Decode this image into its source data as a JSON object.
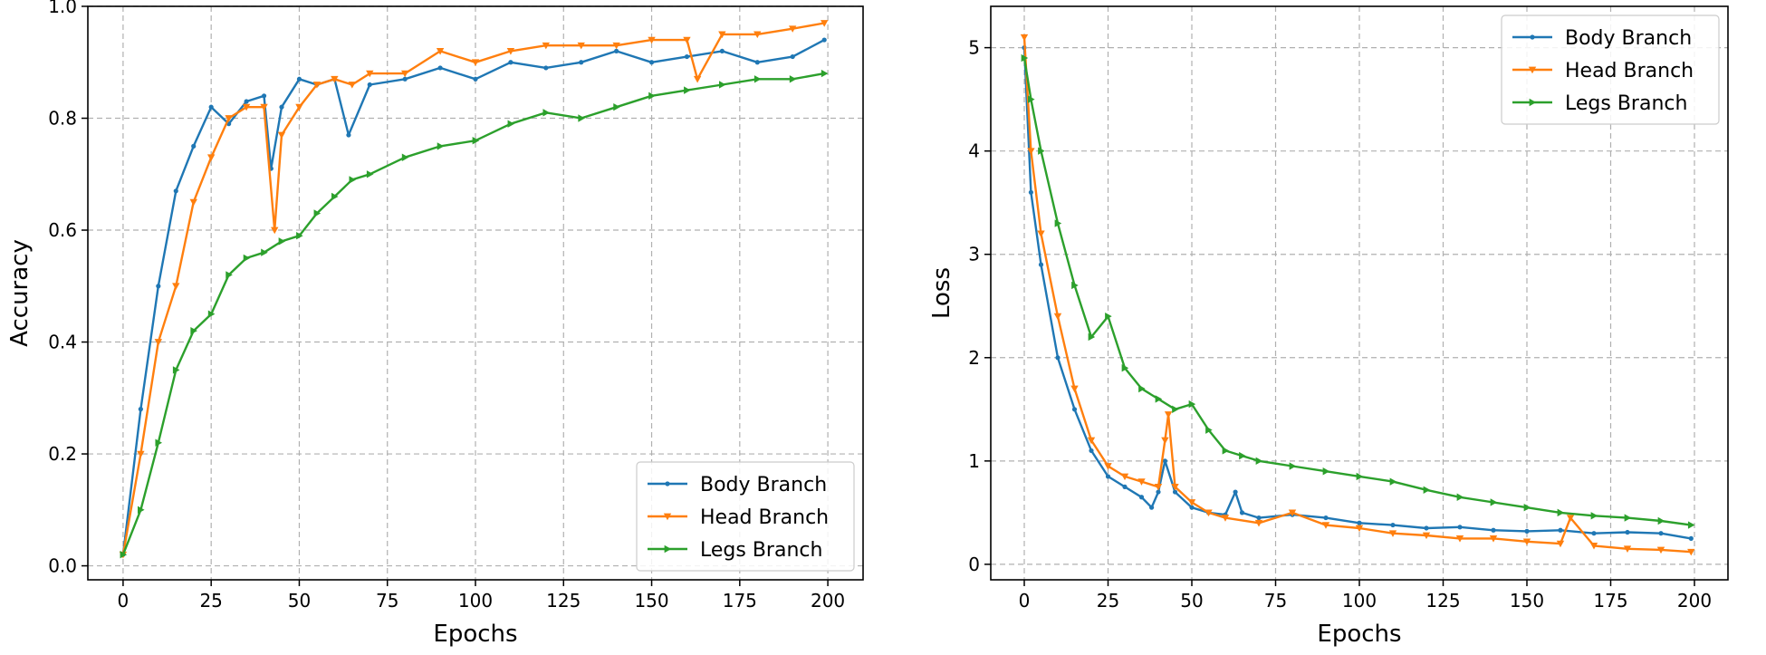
{
  "chart_data": [
    {
      "type": "line",
      "xlabel": "Epochs",
      "ylabel": "Accuracy",
      "xlim": [
        -10,
        210
      ],
      "ylim": [
        -0.025,
        1.0
      ],
      "xticks": [
        0,
        25,
        50,
        75,
        100,
        125,
        150,
        175,
        200
      ],
      "yticks": [
        0.0,
        0.2,
        0.4,
        0.6,
        0.8,
        1.0
      ],
      "ytick_format": 1,
      "grid": true,
      "legend_position": "lower-right",
      "series": [
        {
          "name": "Body Branch",
          "color": "#1f77b4",
          "marker": "dot",
          "x": [
            0,
            5,
            10,
            15,
            20,
            25,
            30,
            35,
            40,
            42,
            45,
            50,
            55,
            60,
            64,
            70,
            80,
            90,
            100,
            110,
            120,
            130,
            140,
            150,
            160,
            170,
            180,
            190,
            199
          ],
          "y": [
            0.02,
            0.28,
            0.5,
            0.67,
            0.75,
            0.82,
            0.79,
            0.83,
            0.84,
            0.71,
            0.82,
            0.87,
            0.86,
            0.87,
            0.77,
            0.86,
            0.87,
            0.89,
            0.87,
            0.9,
            0.89,
            0.9,
            0.92,
            0.9,
            0.91,
            0.92,
            0.9,
            0.91,
            0.94
          ]
        },
        {
          "name": "Head Branch",
          "color": "#ff7f0e",
          "marker": "triangle-down",
          "x": [
            0,
            5,
            10,
            15,
            20,
            25,
            30,
            35,
            40,
            43,
            45,
            50,
            55,
            60,
            65,
            70,
            80,
            90,
            100,
            110,
            120,
            130,
            140,
            150,
            160,
            163,
            170,
            180,
            190,
            199
          ],
          "y": [
            0.02,
            0.2,
            0.4,
            0.5,
            0.65,
            0.73,
            0.8,
            0.82,
            0.82,
            0.6,
            0.77,
            0.82,
            0.86,
            0.87,
            0.86,
            0.88,
            0.88,
            0.92,
            0.9,
            0.92,
            0.93,
            0.93,
            0.93,
            0.94,
            0.94,
            0.87,
            0.95,
            0.95,
            0.96,
            0.97
          ]
        },
        {
          "name": "Legs Branch",
          "color": "#2ca02c",
          "marker": "triangle-right",
          "x": [
            0,
            5,
            10,
            15,
            20,
            25,
            30,
            35,
            40,
            45,
            50,
            55,
            60,
            65,
            70,
            80,
            90,
            100,
            110,
            120,
            130,
            140,
            150,
            160,
            170,
            180,
            190,
            199
          ],
          "y": [
            0.02,
            0.1,
            0.22,
            0.35,
            0.42,
            0.45,
            0.52,
            0.55,
            0.56,
            0.58,
            0.59,
            0.63,
            0.66,
            0.69,
            0.7,
            0.73,
            0.75,
            0.76,
            0.79,
            0.81,
            0.8,
            0.82,
            0.84,
            0.85,
            0.86,
            0.87,
            0.87,
            0.88
          ]
        }
      ]
    },
    {
      "type": "line",
      "xlabel": "Epochs",
      "ylabel": "Loss",
      "xlim": [
        -10,
        210
      ],
      "ylim": [
        -0.15,
        5.4
      ],
      "xticks": [
        0,
        25,
        50,
        75,
        100,
        125,
        150,
        175,
        200
      ],
      "yticks": [
        0,
        1,
        2,
        3,
        4,
        5
      ],
      "ytick_format": 0,
      "grid": true,
      "legend_position": "upper-right",
      "series": [
        {
          "name": "Body Branch",
          "color": "#1f77b4",
          "marker": "dot",
          "x": [
            0,
            2,
            5,
            10,
            15,
            20,
            25,
            30,
            35,
            38,
            40,
            42,
            45,
            50,
            55,
            60,
            63,
            65,
            70,
            80,
            90,
            100,
            110,
            120,
            130,
            140,
            150,
            160,
            170,
            180,
            190,
            199
          ],
          "y": [
            5.0,
            3.6,
            2.9,
            2.0,
            1.5,
            1.1,
            0.85,
            0.75,
            0.65,
            0.55,
            0.7,
            1.0,
            0.7,
            0.55,
            0.5,
            0.48,
            0.7,
            0.5,
            0.45,
            0.48,
            0.45,
            0.4,
            0.38,
            0.35,
            0.36,
            0.33,
            0.32,
            0.33,
            0.3,
            0.31,
            0.3,
            0.25
          ]
        },
        {
          "name": "Head Branch",
          "color": "#ff7f0e",
          "marker": "triangle-down",
          "x": [
            0,
            2,
            5,
            10,
            15,
            20,
            25,
            30,
            35,
            40,
            42,
            43,
            45,
            50,
            55,
            60,
            70,
            80,
            90,
            100,
            110,
            120,
            130,
            140,
            150,
            160,
            163,
            170,
            180,
            190,
            199
          ],
          "y": [
            5.1,
            4.0,
            3.2,
            2.4,
            1.7,
            1.2,
            0.95,
            0.85,
            0.8,
            0.75,
            1.2,
            1.45,
            0.75,
            0.6,
            0.5,
            0.45,
            0.4,
            0.5,
            0.38,
            0.35,
            0.3,
            0.28,
            0.25,
            0.25,
            0.22,
            0.2,
            0.45,
            0.18,
            0.15,
            0.14,
            0.12
          ]
        },
        {
          "name": "Legs Branch",
          "color": "#2ca02c",
          "marker": "triangle-right",
          "x": [
            0,
            2,
            5,
            10,
            15,
            20,
            25,
            30,
            35,
            40,
            45,
            50,
            55,
            60,
            65,
            70,
            80,
            90,
            100,
            110,
            120,
            130,
            140,
            150,
            160,
            170,
            180,
            190,
            199
          ],
          "y": [
            4.9,
            4.5,
            4.0,
            3.3,
            2.7,
            2.2,
            2.4,
            1.9,
            1.7,
            1.6,
            1.5,
            1.55,
            1.3,
            1.1,
            1.05,
            1.0,
            0.95,
            0.9,
            0.85,
            0.8,
            0.72,
            0.65,
            0.6,
            0.55,
            0.5,
            0.47,
            0.45,
            0.42,
            0.38
          ]
        }
      ]
    }
  ]
}
